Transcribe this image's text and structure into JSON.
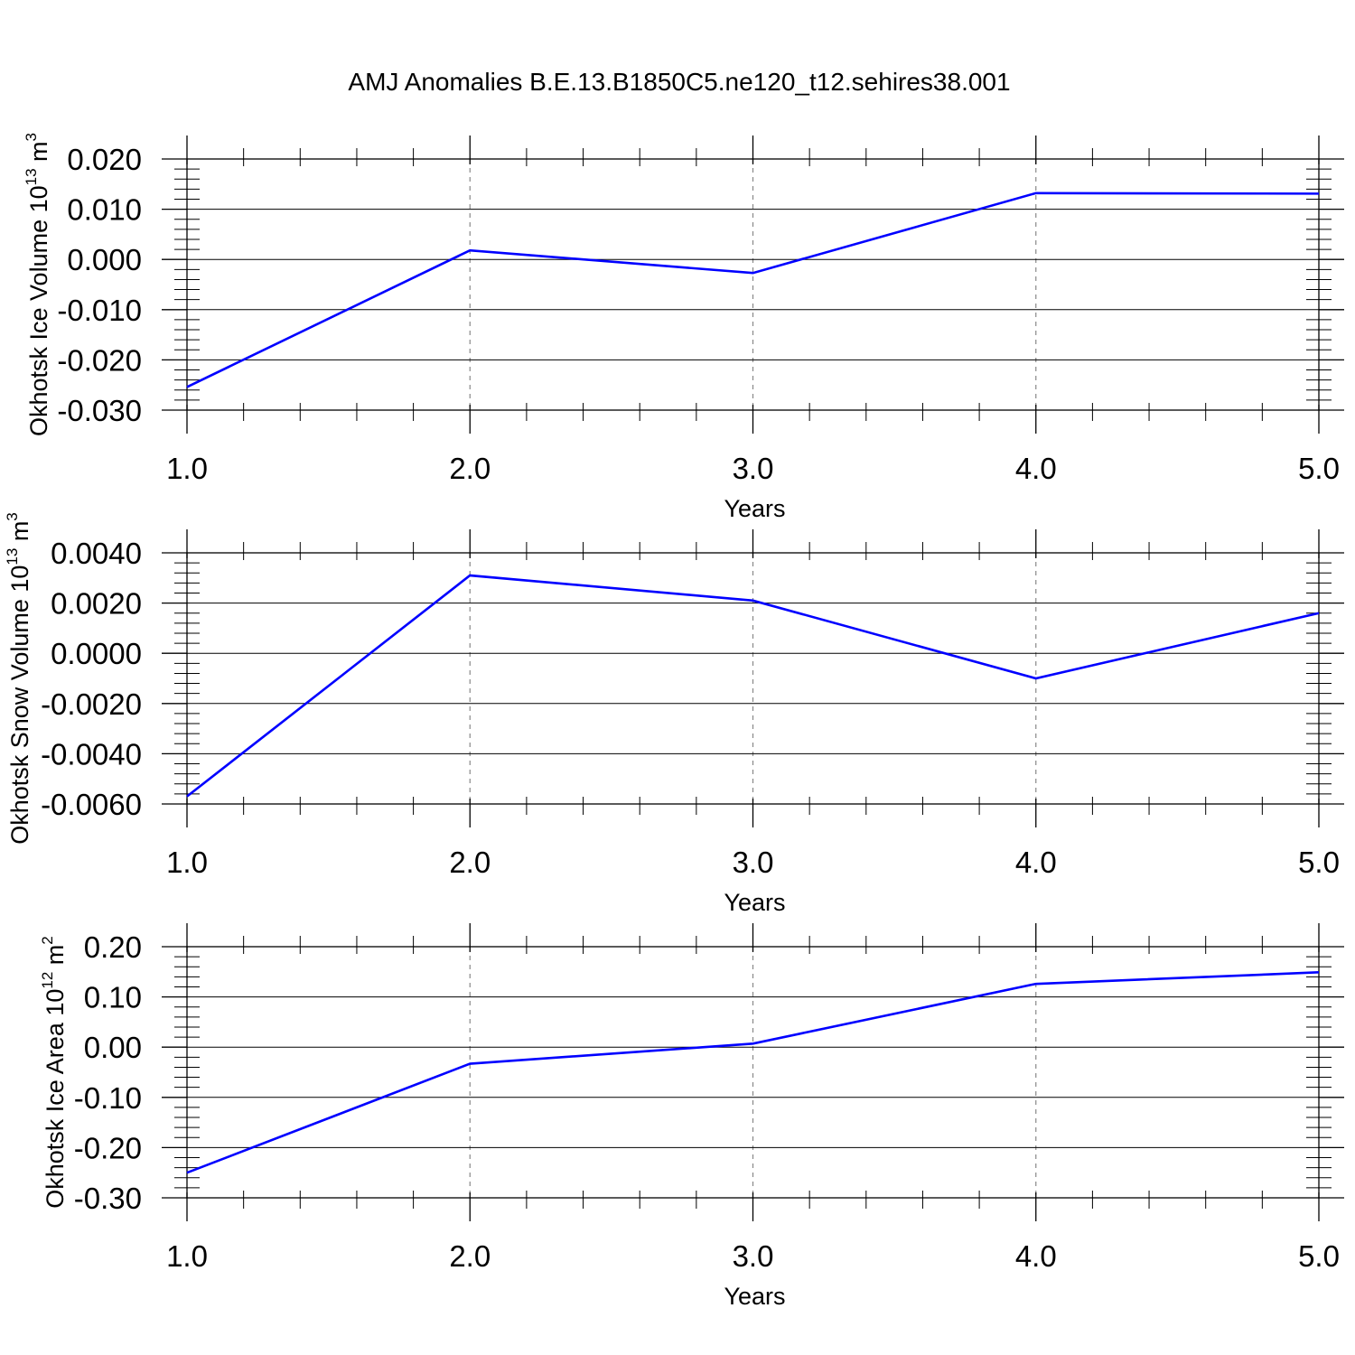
{
  "title": "AMJ Anomalies B.E.13.B1850C5.ne120_t12.sehires38.001",
  "chart_data": [
    {
      "type": "line",
      "ylabel_text": "Okhotsk Ice Volume 10",
      "ylabel_exp": "13",
      "ylabel_unit": " m",
      "ylabel_unit_exp": "3",
      "xlabel": "Years",
      "x": [
        1,
        2,
        3,
        4,
        5
      ],
      "values": [
        -0.0254,
        0.0018,
        -0.0027,
        0.0132,
        0.0131
      ],
      "xlim": [
        1,
        5
      ],
      "ylim": [
        -0.03,
        0.02
      ],
      "xticks": [
        1,
        2,
        3,
        4,
        5
      ],
      "xtick_labels": [
        "1.0",
        "2.0",
        "3.0",
        "4.0",
        "5.0"
      ],
      "yticks": [
        -0.03,
        -0.02,
        -0.01,
        0.0,
        0.01,
        0.02
      ],
      "ytick_labels": [
        "-0.030",
        "-0.020",
        "-0.010",
        "0.000",
        "0.010",
        "0.020"
      ],
      "line_color": "#0000ff"
    },
    {
      "type": "line",
      "ylabel_text": "Okhotsk Snow Volume 10",
      "ylabel_exp": "13",
      "ylabel_unit": " m",
      "ylabel_unit_exp": "3",
      "xlabel": "Years",
      "x": [
        1,
        2,
        3,
        4,
        5
      ],
      "values": [
        -0.0057,
        0.0031,
        0.0021,
        -0.001,
        0.0016
      ],
      "xlim": [
        1,
        5
      ],
      "ylim": [
        -0.006,
        0.004
      ],
      "xticks": [
        1,
        2,
        3,
        4,
        5
      ],
      "xtick_labels": [
        "1.0",
        "2.0",
        "3.0",
        "4.0",
        "5.0"
      ],
      "yticks": [
        -0.006,
        -0.004,
        -0.002,
        0.0,
        0.002,
        0.004
      ],
      "ytick_labels": [
        "-0.0060",
        "-0.0040",
        "-0.0020",
        "0.0000",
        "0.0020",
        "0.0040"
      ],
      "line_color": "#0000ff"
    },
    {
      "type": "line",
      "ylabel_text": "Okhotsk Ice Area 10",
      "ylabel_exp": "12",
      "ylabel_unit": " m",
      "ylabel_unit_exp": "2",
      "xlabel": "Years",
      "x": [
        1,
        2,
        3,
        4,
        5
      ],
      "values": [
        -0.25,
        -0.033,
        0.007,
        0.126,
        0.149
      ],
      "xlim": [
        1,
        5
      ],
      "ylim": [
        -0.3,
        0.2
      ],
      "xticks": [
        1,
        2,
        3,
        4,
        5
      ],
      "xtick_labels": [
        "1.0",
        "2.0",
        "3.0",
        "4.0",
        "5.0"
      ],
      "yticks": [
        -0.3,
        -0.2,
        -0.1,
        0.0,
        0.1,
        0.2
      ],
      "ytick_labels": [
        "-0.30",
        "-0.20",
        "-0.10",
        "0.00",
        "0.10",
        "0.20"
      ],
      "line_color": "#0000ff"
    }
  ]
}
